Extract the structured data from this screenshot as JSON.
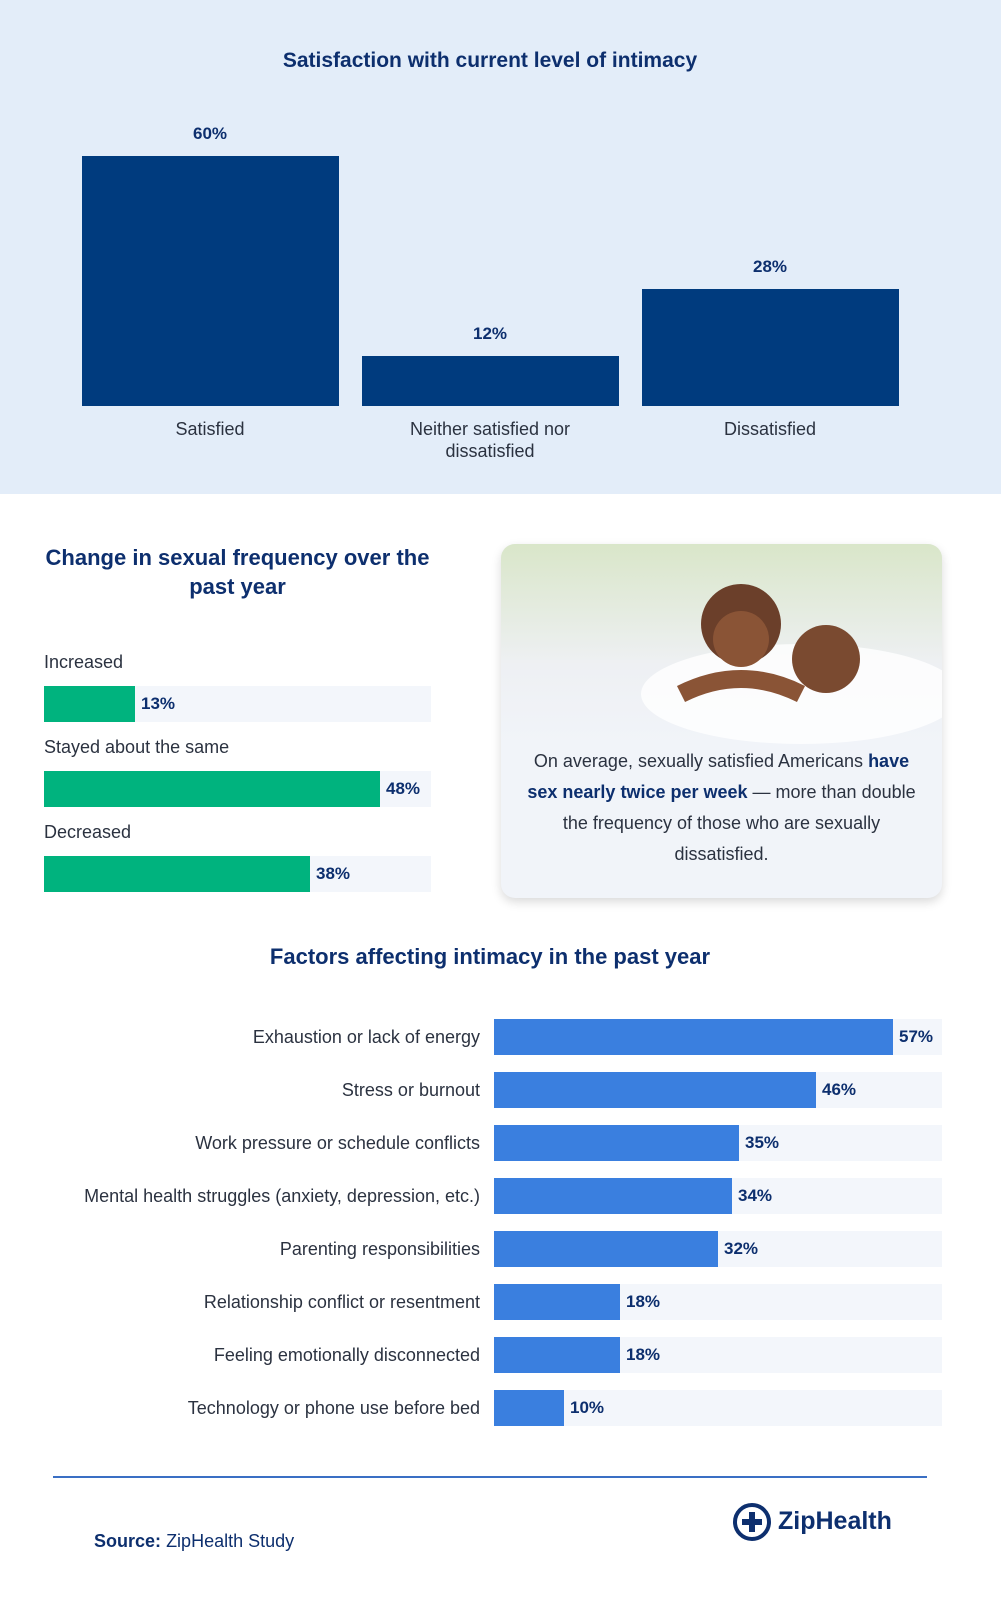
{
  "chart_data": [
    {
      "type": "bar",
      "title": "Satisfaction with current level of intimacy",
      "categories": [
        "Satisfied",
        "Neither satisfied nor dissatisfied",
        "Dissatisfied"
      ],
      "values": [
        60,
        12,
        28
      ],
      "value_labels": [
        "60%",
        "12%",
        "28%"
      ],
      "color": "#003b7e"
    },
    {
      "type": "hbar",
      "title": "Change in sexual frequency over the past year",
      "categories": [
        "Increased",
        "Stayed about the same",
        "Decreased"
      ],
      "values": [
        13,
        48,
        38
      ],
      "value_labels": [
        "13%",
        "48%",
        "38%"
      ],
      "color": "#00b37e"
    },
    {
      "type": "hbar",
      "title": "Factors affecting intimacy in the past year",
      "categories": [
        "Exhaustion or lack of energy",
        "Stress or burnout",
        "Work pressure or schedule conflicts",
        "Mental health struggles (anxiety, depression, etc.)",
        "Parenting responsibilities",
        "Relationship conflict or resentment",
        "Feeling emotionally disconnected",
        "Technology or phone use before bed"
      ],
      "values": [
        57,
        46,
        35,
        34,
        32,
        18,
        18,
        10
      ],
      "value_labels": [
        "57%",
        "46%",
        "35%",
        "34%",
        "32%",
        "18%",
        "18%",
        "10%"
      ],
      "color": "#3a7fdf"
    }
  ],
  "callout": {
    "text_before": "On average, sexually satisfied Americans ",
    "text_bold": "have sex nearly twice per week",
    "text_after": " — more than double the frequency of those who are sexually dissatisfied."
  },
  "footer": {
    "source_label": "Source:",
    "source": "ZipHealth Study",
    "brand": "ZipHealth"
  }
}
